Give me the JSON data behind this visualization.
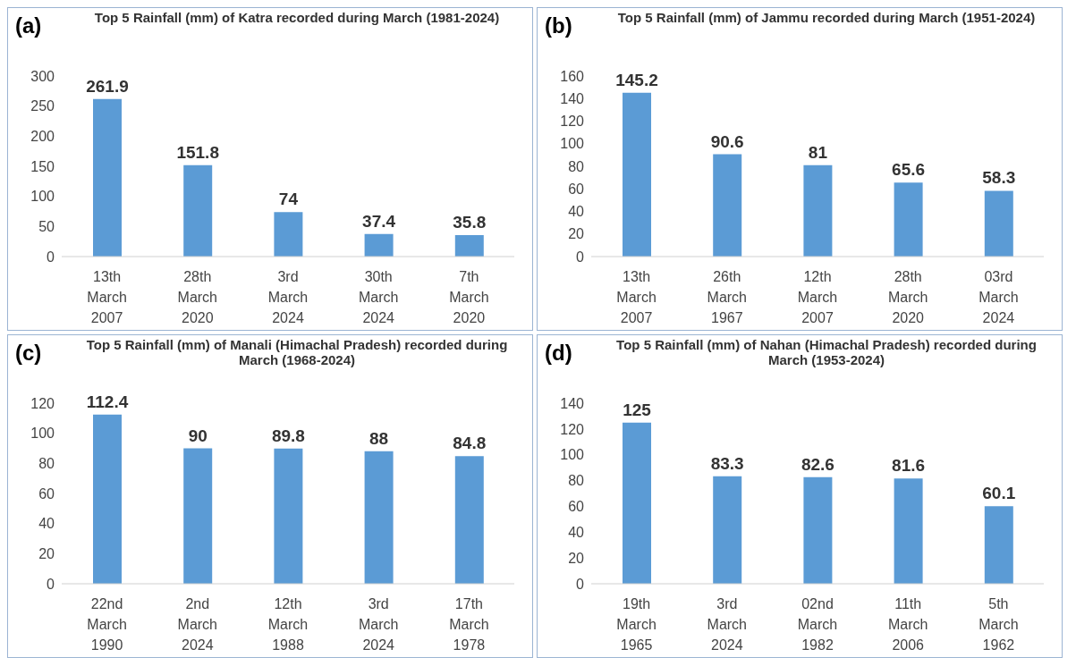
{
  "chart_data": [
    {
      "type": "bar",
      "title": "Top 5 Rainfall (mm) of Katra recorded during March (1981-2024)",
      "annotations": [
        "(a)"
      ],
      "categories": [
        "13th March 2007",
        "28th March 2020",
        "3rd March 2024",
        "30th March 2024",
        "7th March 2020"
      ],
      "values": [
        261.9,
        151.8,
        74,
        37.4,
        35.8
      ],
      "color": "#5b9bd5",
      "ylim": [
        0,
        300
      ],
      "yticks": [
        0,
        50,
        100,
        150,
        200,
        250,
        300
      ],
      "data_labels": true,
      "grid": false,
      "legend": false
    },
    {
      "type": "bar",
      "title": "Top 5 Rainfall (mm) of Jammu recorded during March (1951-2024)",
      "annotations": [
        "(b)"
      ],
      "categories": [
        "13th March 2007",
        "26th March 1967",
        "12th March 2007",
        "28th March 2020",
        "03rd March 2024"
      ],
      "values": [
        145.2,
        90.6,
        81,
        65.6,
        58.3
      ],
      "color": "#5b9bd5",
      "ylim": [
        0,
        160
      ],
      "yticks": [
        0,
        20,
        40,
        60,
        80,
        100,
        120,
        140,
        160
      ],
      "data_labels": true,
      "grid": false,
      "legend": false
    },
    {
      "type": "bar",
      "title": "Top 5 Rainfall (mm) of Manali (Himachal Pradesh) recorded during March (1968-2024)",
      "annotations": [
        "(c)"
      ],
      "categories": [
        "22nd March 1990",
        "2nd March 2024",
        "12th March 1988",
        "3rd March 2024",
        "17th March 1978"
      ],
      "values": [
        112.4,
        90,
        89.8,
        88,
        84.8
      ],
      "color": "#5b9bd5",
      "ylim": [
        0,
        120
      ],
      "yticks": [
        0,
        20,
        40,
        60,
        80,
        100,
        120
      ],
      "data_labels": true,
      "grid": false,
      "legend": false
    },
    {
      "type": "bar",
      "title": "Top 5 Rainfall (mm) of Nahan (Himachal Pradesh) recorded during March (1953-2024)",
      "annotations": [
        "(d)"
      ],
      "categories": [
        "19th March 1965",
        "3rd March 2024",
        "02nd March 1982",
        "11th March 2006",
        "5th March 1962"
      ],
      "values": [
        125,
        83.3,
        82.6,
        81.6,
        60.1
      ],
      "color": "#5b9bd5",
      "ylim": [
        0,
        140
      ],
      "yticks": [
        0,
        20,
        40,
        60,
        80,
        100,
        120,
        140
      ],
      "data_labels": true,
      "grid": false,
      "legend": false
    }
  ]
}
